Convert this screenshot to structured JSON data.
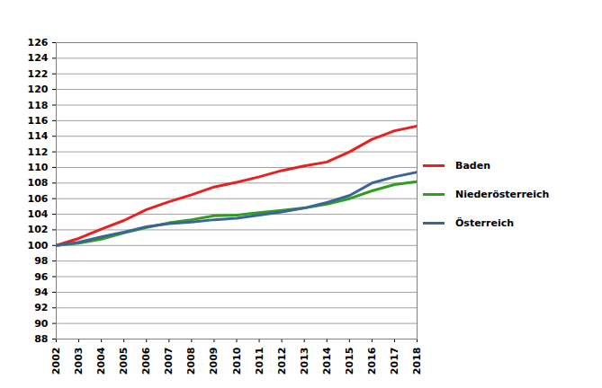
{
  "chart_data": {
    "type": "line",
    "x": [
      2002,
      2003,
      2004,
      2005,
      2006,
      2007,
      2008,
      2009,
      2010,
      2011,
      2012,
      2013,
      2014,
      2015,
      2016,
      2017,
      2018
    ],
    "series": [
      {
        "name": "Baden",
        "color": "#e8201e",
        "values": [
          100,
          100.9,
          102.1,
          103.2,
          104.6,
          105.6,
          106.5,
          107.5,
          108.1,
          108.8,
          109.6,
          110.2,
          110.7,
          112.0,
          113.6,
          114.7,
          115.3
        ]
      },
      {
        "name": "Niederösterreich",
        "color": "#2e9e1e",
        "values": [
          100,
          100.3,
          100.8,
          101.6,
          102.3,
          102.9,
          103.3,
          103.8,
          103.9,
          104.2,
          104.5,
          104.8,
          105.3,
          106.0,
          107.0,
          107.8,
          108.2
        ]
      },
      {
        "name": "Österreich",
        "color": "#3b6596",
        "values": [
          100,
          100.4,
          101.1,
          101.7,
          102.4,
          102.8,
          103.0,
          103.3,
          103.5,
          103.9,
          104.3,
          104.8,
          105.5,
          106.4,
          108.0,
          108.8,
          109.4
        ]
      }
    ],
    "xlim": [
      2002,
      2018
    ],
    "xticks": [
      2002,
      2003,
      2004,
      2005,
      2006,
      2007,
      2008,
      2009,
      2010,
      2011,
      2012,
      2013,
      2014,
      2015,
      2016,
      2017,
      2018
    ],
    "ylim": [
      88,
      126
    ],
    "yticks": [
      88,
      90,
      92,
      94,
      96,
      98,
      100,
      102,
      104,
      106,
      108,
      110,
      112,
      114,
      116,
      118,
      120,
      122,
      124,
      126
    ],
    "grid": true,
    "legend": "right"
  }
}
